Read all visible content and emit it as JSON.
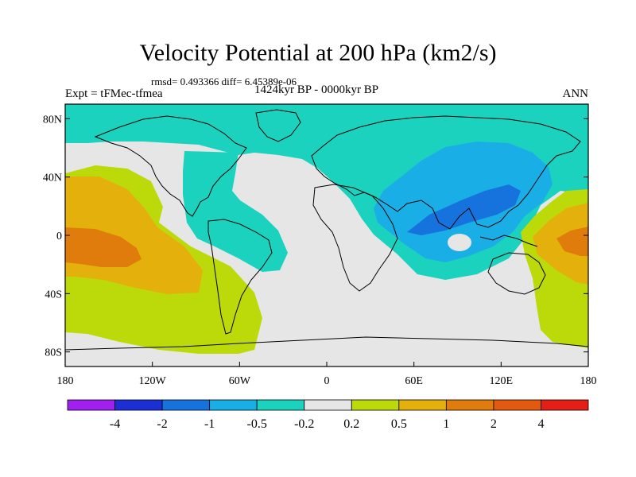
{
  "title": "Velocity Potential at 200 hPa (km2/s)",
  "stats": "rmsd= 0.493366 diff= 6.45389e-06",
  "experiment": "Expt = tFMec-tfmea",
  "period": "1424kyr BP - 0000kyr BP",
  "season": "ANN",
  "lon_ticks": [
    "180",
    "120W",
    "60W",
    "0",
    "60E",
    "120E",
    "180"
  ],
  "lat_ticks": [
    "80N",
    "40N",
    "0",
    "40S",
    "80S"
  ],
  "colorbar": {
    "colors": [
      "#a020f0",
      "#1c2fd6",
      "#1672dc",
      "#1aaee6",
      "#1bd2bf",
      "#e6e6e6",
      "#bcd90a",
      "#e4b10c",
      "#e07c0c",
      "#e25a10",
      "#e42016"
    ],
    "labels": [
      "-4",
      "-2",
      "-1",
      "-0.5",
      "-0.2",
      "0.2",
      "0.5",
      "1",
      "2",
      "4"
    ]
  }
}
